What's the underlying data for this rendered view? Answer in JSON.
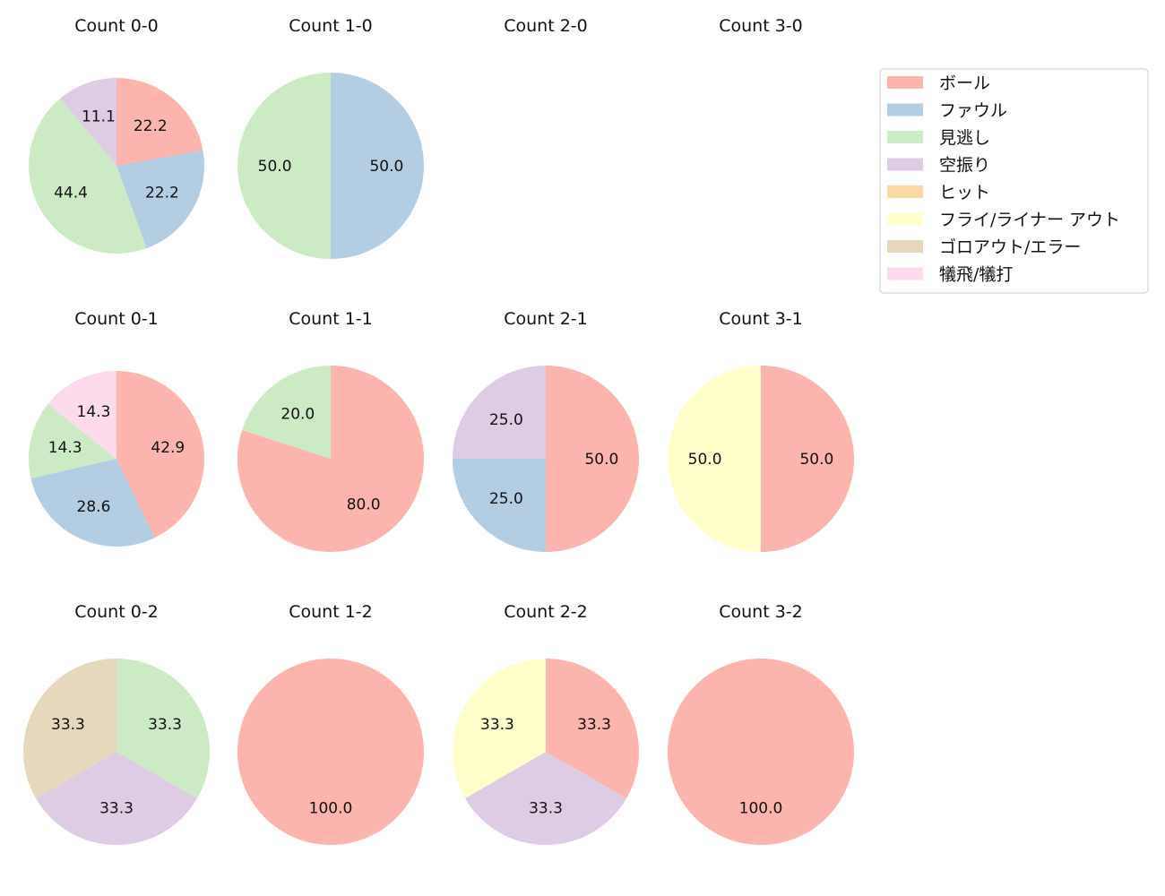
{
  "chart_data": [
    {
      "type": "pie",
      "title": "Count 0-0",
      "slices": [
        {
          "label": "ボール",
          "value": 22.2
        },
        {
          "label": "ファウル",
          "value": 22.2
        },
        {
          "label": "見逃し",
          "value": 44.4
        },
        {
          "label": "空振り",
          "value": 11.1
        }
      ]
    },
    {
      "type": "pie",
      "title": "Count 1-0",
      "slices": [
        {
          "label": "ファウル",
          "value": 50.0
        },
        {
          "label": "見逃し",
          "value": 50.0
        }
      ]
    },
    {
      "type": "pie",
      "title": "Count 2-0",
      "slices": []
    },
    {
      "type": "pie",
      "title": "Count 3-0",
      "slices": []
    },
    {
      "type": "pie",
      "title": "Count 0-1",
      "slices": [
        {
          "label": "ボール",
          "value": 42.9
        },
        {
          "label": "ファウル",
          "value": 28.6
        },
        {
          "label": "見逃し",
          "value": 14.3
        },
        {
          "label": "犠飛/犠打",
          "value": 14.3
        }
      ]
    },
    {
      "type": "pie",
      "title": "Count 1-1",
      "slices": [
        {
          "label": "ボール",
          "value": 80.0
        },
        {
          "label": "見逃し",
          "value": 20.0
        }
      ]
    },
    {
      "type": "pie",
      "title": "Count 2-1",
      "slices": [
        {
          "label": "ボール",
          "value": 50.0
        },
        {
          "label": "ファウル",
          "value": 25.0
        },
        {
          "label": "空振り",
          "value": 25.0
        }
      ]
    },
    {
      "type": "pie",
      "title": "Count 3-1",
      "slices": [
        {
          "label": "ボール",
          "value": 50.0
        },
        {
          "label": "フライ/ライナー アウト",
          "value": 50.0
        }
      ]
    },
    {
      "type": "pie",
      "title": "Count 0-2",
      "slices": [
        {
          "label": "見逃し",
          "value": 33.3
        },
        {
          "label": "空振り",
          "value": 33.3
        },
        {
          "label": "ゴロアウト/エラー",
          "value": 33.3
        }
      ]
    },
    {
      "type": "pie",
      "title": "Count 1-2",
      "slices": [
        {
          "label": "ボール",
          "value": 100.0
        }
      ]
    },
    {
      "type": "pie",
      "title": "Count 2-2",
      "slices": [
        {
          "label": "ボール",
          "value": 33.3
        },
        {
          "label": "空振り",
          "value": 33.3
        },
        {
          "label": "フライ/ライナー アウト",
          "value": 33.3
        }
      ]
    },
    {
      "type": "pie",
      "title": "Count 3-2",
      "slices": [
        {
          "label": "ボール",
          "value": 100.0
        }
      ]
    }
  ],
  "legend": {
    "placement": "top-right",
    "items": [
      {
        "label": "ボール",
        "color": "#fbb4ae"
      },
      {
        "label": "ファウル",
        "color": "#b3cde3"
      },
      {
        "label": "見逃し",
        "color": "#ccebc5"
      },
      {
        "label": "空振り",
        "color": "#decbe4"
      },
      {
        "label": "ヒット",
        "color": "#fed9a6"
      },
      {
        "label": "フライ/ライナー アウト",
        "color": "#ffffcc"
      },
      {
        "label": "ゴロアウト/エラー",
        "color": "#e5d8bd"
      },
      {
        "label": "犠飛/犠打",
        "color": "#fddaec"
      }
    ]
  }
}
